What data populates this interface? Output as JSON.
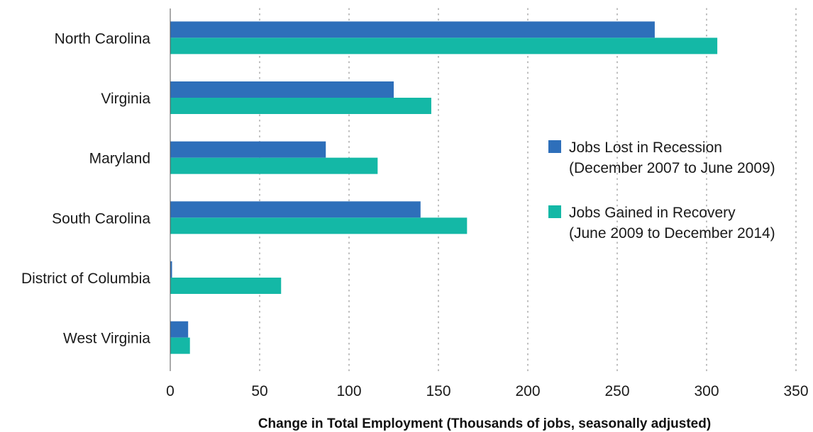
{
  "chart_data": {
    "type": "bar",
    "orientation": "horizontal",
    "categories": [
      "North Carolina",
      "Virginia",
      "Maryland",
      "South Carolina",
      "District of Columbia",
      "West Virginia"
    ],
    "series": [
      {
        "name": "Jobs Lost in Recession",
        "name_line2": "(December 2007 to June 2009)",
        "color": "#2e6fba",
        "values": [
          271,
          125,
          87,
          140,
          1,
          10
        ]
      },
      {
        "name": "Jobs Gained in Recovery",
        "name_line2": "(June 2009 to December 2014)",
        "color": "#14b8a6",
        "values": [
          306,
          146,
          116,
          166,
          62,
          11
        ]
      }
    ],
    "xlim": [
      0,
      350
    ],
    "xticks": [
      0,
      50,
      100,
      150,
      200,
      250,
      300,
      350
    ],
    "xlabel": "Change in Total Employment (Thousands of jobs, seasonally adjusted)",
    "ylabel": "",
    "title": "",
    "grid": "vertical dotted",
    "legend_position": "right"
  }
}
